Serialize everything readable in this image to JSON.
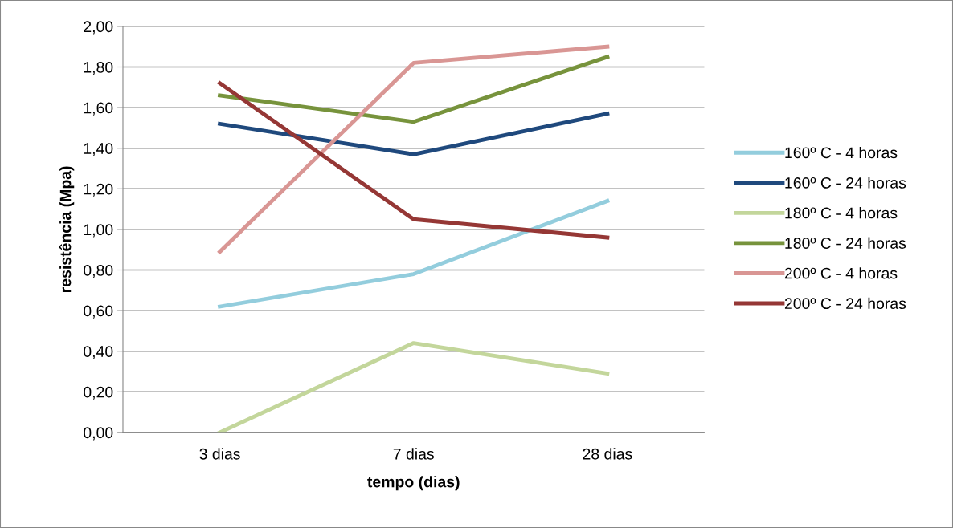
{
  "chart_data": {
    "type": "line",
    "xlabel": "tempo (dias)",
    "ylabel": "resistência (Mpa)",
    "categories": [
      "3 dias",
      "7 dias",
      "28 dias"
    ],
    "series": [
      {
        "name": "160º C - 4 horas",
        "color": "#93cddd",
        "values": [
          0.62,
          0.78,
          1.14
        ]
      },
      {
        "name": "160º C - 24 horas",
        "color": "#1f497d",
        "values": [
          1.52,
          1.37,
          1.57
        ]
      },
      {
        "name": "180º C - 4 horas",
        "color": "#c3d69b",
        "values": [
          0.0,
          0.44,
          0.29
        ]
      },
      {
        "name": "180º C - 24 horas",
        "color": "#77933c",
        "values": [
          1.66,
          1.53,
          1.85
        ]
      },
      {
        "name": "200º C - 4 horas",
        "color": "#d99694",
        "values": [
          0.89,
          1.82,
          1.9
        ]
      },
      {
        "name": "200º C - 24 horas",
        "color": "#953735",
        "values": [
          1.72,
          1.05,
          0.96
        ]
      }
    ],
    "ylim": [
      0,
      2
    ],
    "yticks": [
      {
        "value": 0,
        "label": "0,00"
      },
      {
        "value": 0.2,
        "label": "0,20"
      },
      {
        "value": 0.4,
        "label": "0,40"
      },
      {
        "value": 0.6,
        "label": "0,60"
      },
      {
        "value": 0.8,
        "label": "0,80"
      },
      {
        "value": 1.0,
        "label": "1,00"
      },
      {
        "value": 1.2,
        "label": "1,20"
      },
      {
        "value": 1.4,
        "label": "1,40"
      },
      {
        "value": 1.6,
        "label": "1,60"
      },
      {
        "value": 1.8,
        "label": "1,80"
      },
      {
        "value": 2.0,
        "label": "2,00"
      }
    ],
    "grid": "y",
    "legend": "right",
    "marker": "none",
    "line_style": "solid"
  }
}
